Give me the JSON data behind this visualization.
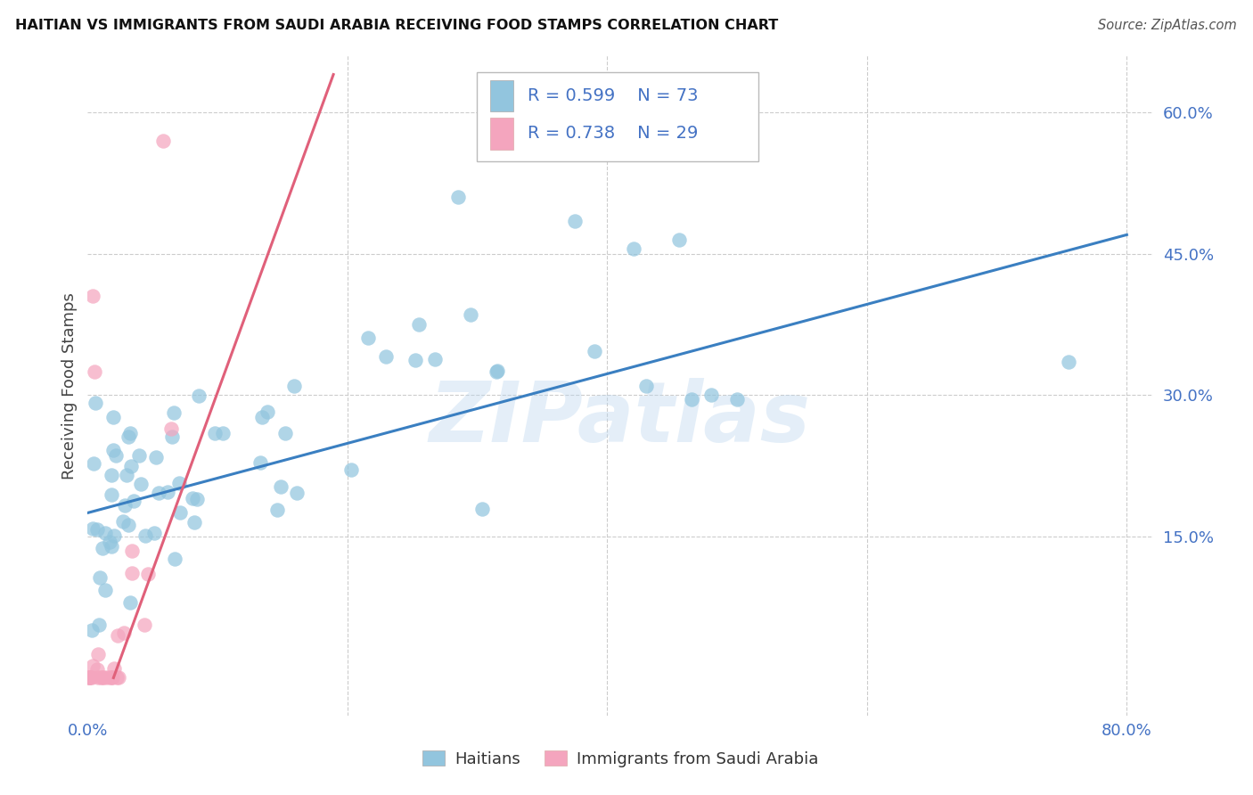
{
  "title": "HAITIAN VS IMMIGRANTS FROM SAUDI ARABIA RECEIVING FOOD STAMPS CORRELATION CHART",
  "source": "Source: ZipAtlas.com",
  "ylabel": "Receiving Food Stamps",
  "watermark": "ZIPatlas",
  "xlim": [
    0.0,
    0.82
  ],
  "ylim": [
    -0.04,
    0.66
  ],
  "ytick_right": [
    0.15,
    0.3,
    0.45,
    0.6
  ],
  "ytick_right_labels": [
    "15.0%",
    "30.0%",
    "45.0%",
    "60.0%"
  ],
  "xtick_vals": [
    0.0,
    0.2,
    0.4,
    0.6,
    0.8
  ],
  "xtick_labels": [
    "0.0%",
    "",
    "",
    "",
    "80.0%"
  ],
  "blue_color": "#92c5de",
  "pink_color": "#f4a5be",
  "blue_line_color": "#3a7fc1",
  "pink_line_color": "#e0607a",
  "blue_R": 0.599,
  "blue_N": 73,
  "pink_R": 0.738,
  "pink_N": 29,
  "blue_legend": "Haitians",
  "pink_legend": "Immigrants from Saudi Arabia",
  "background_color": "#ffffff",
  "grid_color": "#cccccc",
  "title_color": "#111111",
  "right_tick_color": "#4472c4",
  "bottom_tick_color": "#4472c4",
  "blue_trend_x0": 0.0,
  "blue_trend_x1": 0.8,
  "blue_trend_y0": 0.175,
  "blue_trend_y1": 0.47,
  "pink_slope": 3.78,
  "pink_intercept": -0.075
}
